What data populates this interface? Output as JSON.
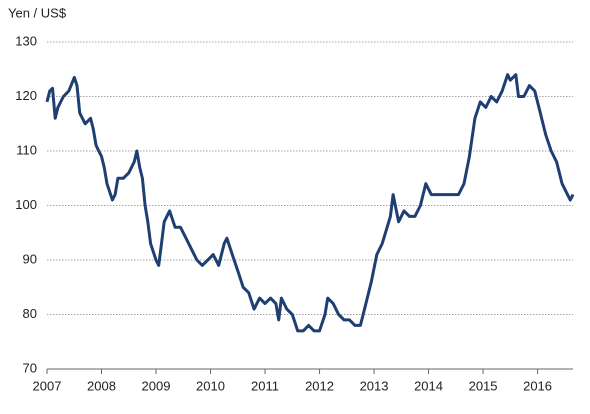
{
  "chart_data": {
    "type": "line",
    "y_axis_label": "Yen / US$",
    "x": [
      2007.0,
      2007.05,
      2007.1,
      2007.15,
      2007.2,
      2007.3,
      2007.4,
      2007.5,
      2007.55,
      2007.6,
      2007.7,
      2007.8,
      2007.85,
      2007.9,
      2008.0,
      2008.05,
      2008.1,
      2008.2,
      2008.25,
      2008.3,
      2008.4,
      2008.5,
      2008.6,
      2008.65,
      2008.7,
      2008.75,
      2008.8,
      2008.85,
      2008.9,
      2009.0,
      2009.05,
      2009.1,
      2009.15,
      2009.25,
      2009.35,
      2009.45,
      2009.55,
      2009.65,
      2009.75,
      2009.85,
      2009.95,
      2010.05,
      2010.15,
      2010.25,
      2010.3,
      2010.4,
      2010.5,
      2010.6,
      2010.7,
      2010.8,
      2010.9,
      2011.0,
      2011.1,
      2011.2,
      2011.25,
      2011.3,
      2011.4,
      2011.5,
      2011.6,
      2011.7,
      2011.8,
      2011.9,
      2012.0,
      2012.1,
      2012.15,
      2012.25,
      2012.35,
      2012.45,
      2012.55,
      2012.65,
      2012.75,
      2012.85,
      2012.95,
      2013.05,
      2013.15,
      2013.3,
      2013.35,
      2013.45,
      2013.55,
      2013.65,
      2013.75,
      2013.85,
      2013.95,
      2014.05,
      2014.15,
      2014.3,
      2014.45,
      2014.55,
      2014.65,
      2014.75,
      2014.85,
      2014.95,
      2015.05,
      2015.15,
      2015.25,
      2015.35,
      2015.45,
      2015.5,
      2015.6,
      2015.65,
      2015.75,
      2015.85,
      2015.95,
      2016.05,
      2016.15,
      2016.25,
      2016.35,
      2016.45,
      2016.55,
      2016.6,
      2016.65
    ],
    "series": [
      {
        "name": "Yen / US$",
        "color": "#1f3f73",
        "values": [
          119,
          121,
          121.5,
          116,
          118,
          120,
          121,
          123.5,
          122,
          117,
          115,
          116,
          114,
          111,
          109,
          107,
          104,
          101,
          102,
          105,
          105,
          106,
          108,
          110,
          107,
          105,
          100,
          97,
          93,
          90,
          89,
          93,
          97,
          99,
          96,
          96,
          94,
          92,
          90,
          89,
          90,
          91,
          89,
          93,
          94,
          91,
          88,
          85,
          84,
          81,
          83,
          82,
          83,
          82,
          79,
          83,
          81,
          80,
          77,
          77,
          78,
          77,
          77,
          80,
          83,
          82,
          80,
          79,
          79,
          78,
          78,
          82,
          86,
          91,
          93,
          98,
          102,
          97,
          99,
          98,
          98,
          100,
          104,
          102,
          102,
          102,
          102,
          102,
          104,
          109,
          116,
          119,
          118,
          120,
          119,
          121,
          124,
          123,
          124,
          120,
          120,
          122,
          121,
          117,
          113,
          110,
          108,
          104,
          102,
          101,
          102
        ]
      }
    ],
    "xlim": [
      2007,
      2016.65
    ],
    "xticks": [
      2007,
      2008,
      2009,
      2010,
      2011,
      2012,
      2013,
      2014,
      2015,
      2016
    ],
    "ylim": [
      70,
      130
    ],
    "yticks": [
      70,
      80,
      90,
      100,
      110,
      120,
      130
    ],
    "grid": true
  }
}
